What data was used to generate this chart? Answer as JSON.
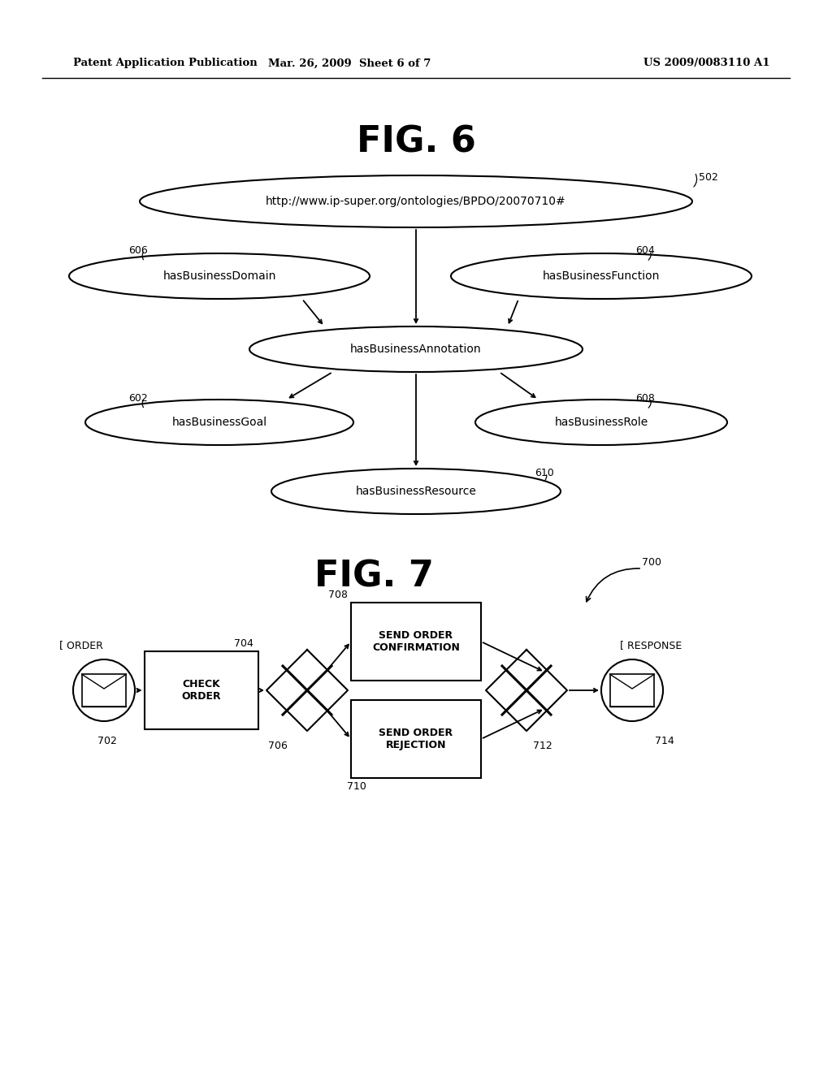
{
  "background_color": "#ffffff",
  "header_left": "Patent Application Publication",
  "header_mid": "Mar. 26, 2009  Sheet 6 of 7",
  "header_right": "US 2009/0083110 A1",
  "fig6_title": "FIG. 6",
  "fig7_title": "FIG. 7",
  "page_width": 10.24,
  "page_height": 13.2,
  "dpi": 100
}
